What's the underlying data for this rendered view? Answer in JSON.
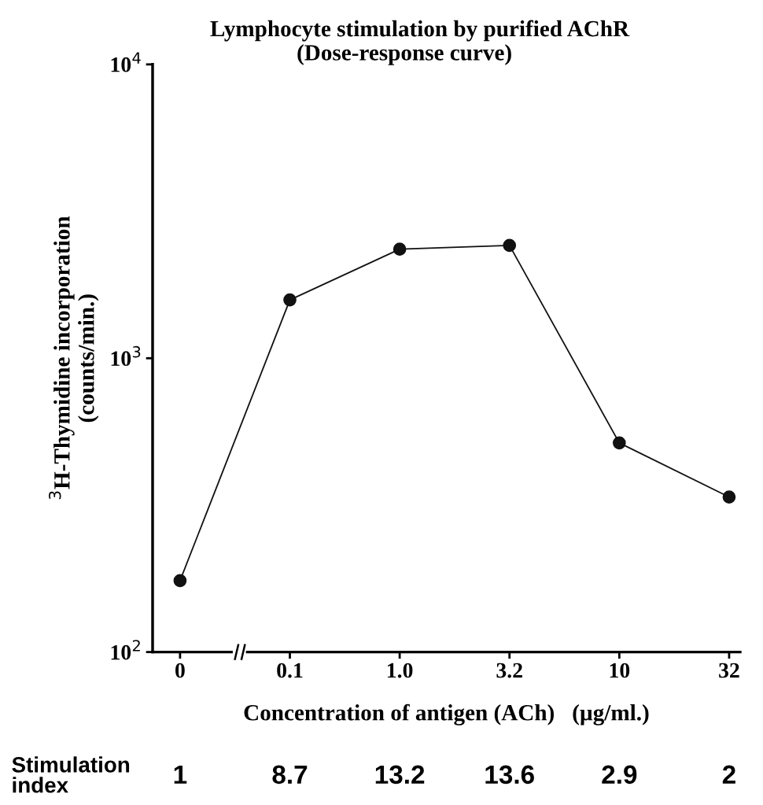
{
  "chart_data": {
    "type": "line",
    "title": "Lymphocyte stimulation by purified AChR",
    "subtitle": "(Dose-response curve)",
    "xlabel": "Concentration of antigen (ACh)   (µg/ml.)",
    "ylabel": "$^{3}$H-Thymidine incorporation\n(counts/min.)",
    "categories": [
      "0",
      "0.1",
      "1.0",
      "3.2",
      "10",
      "32"
    ],
    "series": [
      {
        "color": "#111111",
        "values": [
          175,
          1580,
          2350,
          2420,
          515,
          337
        ]
      }
    ],
    "log": "y",
    "ylim": [
      100,
      10000
    ],
    "yticks": [
      {
        "value": 100,
        "label": "10$^{2}$"
      },
      {
        "value": 1000,
        "label": "10$^{3}$"
      },
      {
        "value": 10000,
        "label": "10$^{4}$"
      }
    ],
    "grid": false,
    "marker": "circle",
    "line_style": "solid",
    "annotations": [
      "Stimulation\nindex",
      "1",
      "8.7",
      "13.2",
      "13.6",
      "2.9",
      "2"
    ]
  }
}
